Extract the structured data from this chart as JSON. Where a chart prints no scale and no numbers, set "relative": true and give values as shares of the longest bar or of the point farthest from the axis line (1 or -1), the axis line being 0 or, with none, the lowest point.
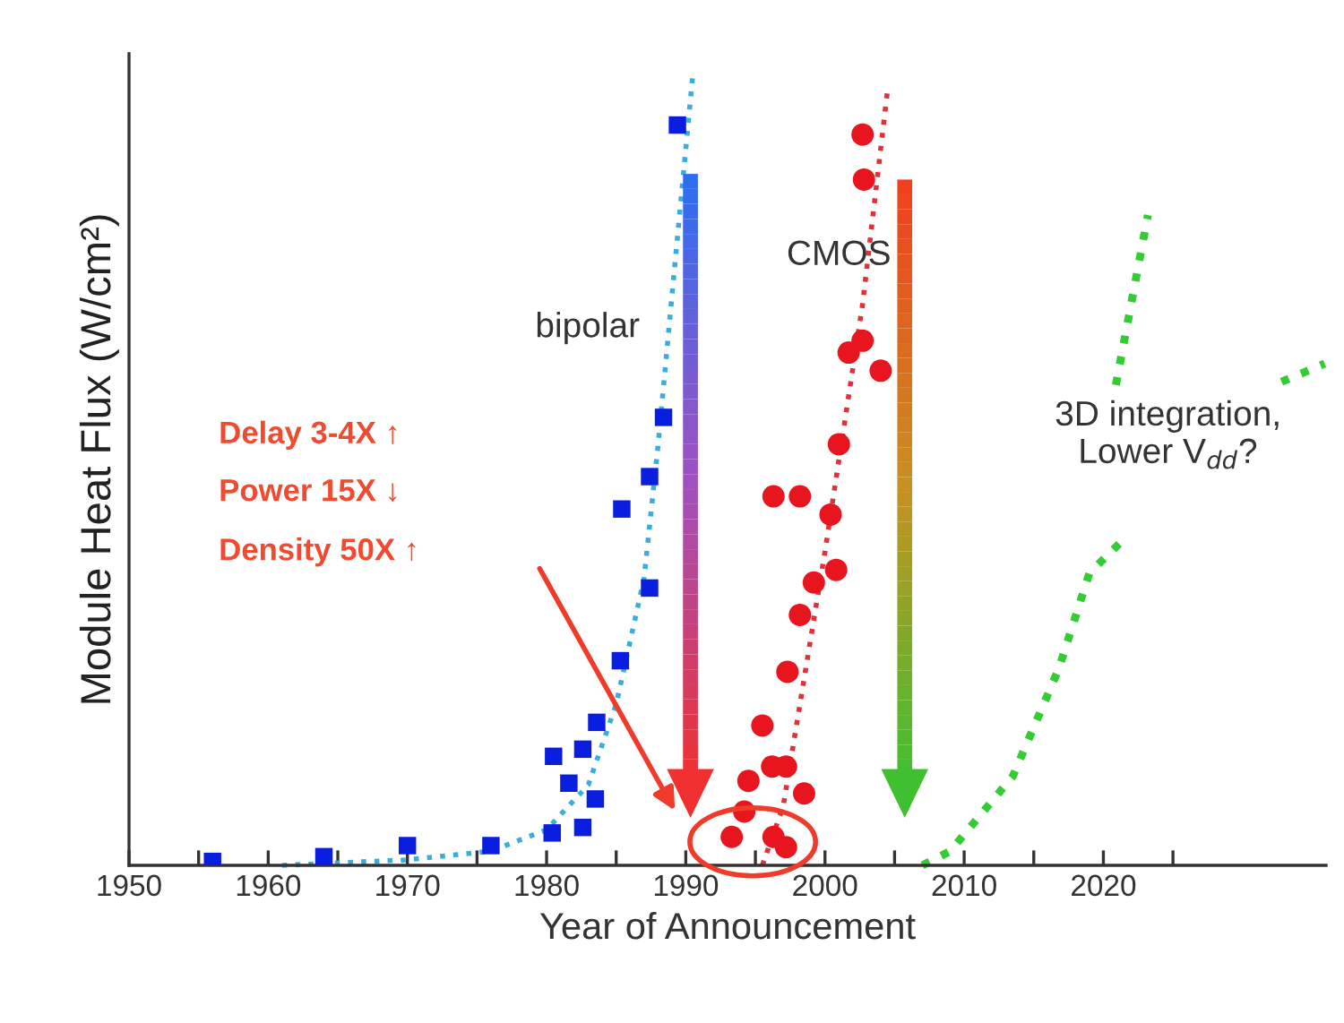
{
  "chart_data": {
    "type": "scatter",
    "relative": true,
    "xlabel": "Year of Announcement",
    "ylabel": "Module Heat Flux (W/cm²)",
    "xlim": [
      1950,
      2036
    ],
    "xticks": [
      1950,
      {
        "value": 1955,
        "label": null
      },
      1960,
      {
        "value": 1965,
        "label": null
      },
      1970,
      {
        "value": 1975,
        "label": null
      },
      1980,
      {
        "value": 1985,
        "label": null
      },
      1990,
      {
        "value": 1995,
        "label": null
      },
      2000,
      {
        "value": 2005,
        "label": null
      },
      2010,
      {
        "value": 2015,
        "label": null
      },
      2020,
      {
        "value": 2025,
        "label": null
      }
    ],
    "tick_labels": "x",
    "grid": false,
    "legend": false,
    "series": [
      {
        "marker": "square",
        "color": "#0a1ee0",
        "x": [
          1956,
          1964,
          1970,
          1976,
          1980.4,
          1982.6,
          1980.5,
          1982.6,
          1981.6,
          1983.5,
          1983.6,
          1985.3,
          1987.4,
          1985.4,
          1987.4,
          1988.4,
          1989.4
        ],
        "values": [
          0.005,
          0.011,
          0.025,
          0.025,
          0.041,
          0.048,
          0.138,
          0.147,
          0.104,
          0.084,
          0.181,
          0.259,
          0.351,
          0.451,
          0.492,
          0.567,
          0.937
        ]
      },
      {
        "type": "line",
        "line_style": "dotted",
        "marker": "none",
        "color": "#3aaed8",
        "x": [
          1961,
          1970,
          1976,
          1980,
          1983,
          1985,
          1987,
          1988,
          1989,
          1990.5
        ],
        "values": [
          0,
          0.007,
          0.018,
          0.045,
          0.102,
          0.204,
          0.363,
          0.53,
          0.72,
          1
        ]
      },
      {
        "marker": "circle",
        "color": "#e8141e",
        "x": [
          2002.7,
          2002.8,
          2001.7,
          2002.7,
          2004.0,
          2001.0,
          1996.3,
          1998.2,
          2000.4,
          2000.8,
          1999.2,
          1998.2,
          1997.3,
          1995.5,
          1996.2,
          1997.2,
          1998.5,
          1994.5,
          1994.2,
          1993.3,
          1996.3,
          1997.2
        ],
        "values": [
          0.925,
          0.868,
          0.649,
          0.664,
          0.626,
          0.533,
          0.467,
          0.467,
          0.444,
          0.374,
          0.358,
          0.317,
          0.245,
          0.177,
          0.125,
          0.125,
          0.091,
          0.107,
          0.068,
          0.036,
          0.036,
          0.023
        ]
      },
      {
        "type": "line",
        "line_style": "dotted",
        "marker": "none",
        "color": "#e0303a",
        "x": [
          1995.5,
          1997,
          2000,
          2002.7,
          2004.5
        ],
        "values": [
          0,
          0.075,
          0.397,
          0.71,
          0.982
        ]
      },
      {
        "type": "line",
        "line_style": "dotted",
        "marker": "none",
        "color": "#33cc33",
        "x": [
          2007,
          2009,
          2013.5,
          2016.8,
          2019,
          2021.2
        ],
        "values": [
          0,
          0.018,
          0.113,
          0.249,
          0.37,
          0.408
        ]
      },
      {
        "type": "line",
        "line_style": "dotted",
        "marker": "none",
        "color": "#33cc33",
        "x": [
          2020.9,
          2023.2
        ],
        "values": [
          0.608,
          0.823
        ]
      },
      {
        "type": "line",
        "line_style": "dotted",
        "marker": "none",
        "color": "#33cc33",
        "x": [
          2032.8,
          2035.9
        ],
        "values": [
          0.612,
          0.635
        ]
      }
    ],
    "annotations": [
      "bipolar",
      "CMOS",
      "Delay 3-4X ↑",
      "Power 15X ↓",
      "Density 50X ↑",
      "3D integration,\nLower V$_{dd}$?"
    ]
  }
}
